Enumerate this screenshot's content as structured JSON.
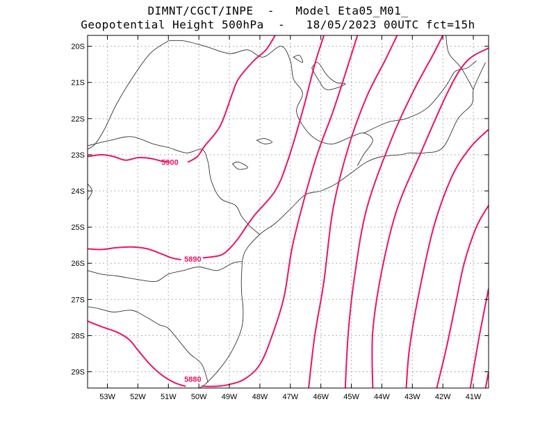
{
  "title": {
    "line1": "DIMNT/CGCT/INPE  -   Model Eta05_M01_",
    "line2": "Geopotential Height 500hPa  -   18/05/2023 00UTC fct=15h"
  },
  "map": {
    "lon_range": [
      -53.65,
      -40.5
    ],
    "lat_range": [
      -29.45,
      -19.7
    ],
    "lon_ticks": [
      {
        "value": -53,
        "label": "53W"
      },
      {
        "value": -52,
        "label": "52W"
      },
      {
        "value": -51,
        "label": "51W"
      },
      {
        "value": -50,
        "label": "50W"
      },
      {
        "value": -49,
        "label": "49W"
      },
      {
        "value": -48,
        "label": "48W"
      },
      {
        "value": -47,
        "label": "47W"
      },
      {
        "value": -46,
        "label": "46W"
      },
      {
        "value": -45,
        "label": "45W"
      },
      {
        "value": -44,
        "label": "44W"
      },
      {
        "value": -43,
        "label": "43W"
      },
      {
        "value": -42,
        "label": "42W"
      },
      {
        "value": -41,
        "label": "41W"
      }
    ],
    "lat_ticks": [
      {
        "value": -20,
        "label": "20S"
      },
      {
        "value": -21,
        "label": "21S"
      },
      {
        "value": -22,
        "label": "22S"
      },
      {
        "value": -23,
        "label": "23S"
      },
      {
        "value": -24,
        "label": "24S"
      },
      {
        "value": -25,
        "label": "25S"
      },
      {
        "value": -26,
        "label": "26S"
      },
      {
        "value": -27,
        "label": "27S"
      },
      {
        "value": -28,
        "label": "28S"
      },
      {
        "value": -29,
        "label": "29S"
      }
    ],
    "colors": {
      "contour": "#ee1166",
      "boundary": "#333333",
      "grid": "#999999",
      "frame": "#000000"
    },
    "contour_labels": [
      {
        "text": "5900",
        "lon": -50.95,
        "lat": -23.2
      },
      {
        "text": "5890",
        "lon": -50.2,
        "lat": -25.88
      },
      {
        "text": "5880",
        "lon": -50.2,
        "lat": -29.2
      }
    ],
    "contours": [
      {
        "name": "h5900",
        "points": [
          [
            -53.65,
            -23.05
          ],
          [
            -53.2,
            -23.0
          ],
          [
            -52.8,
            -23.05
          ],
          [
            -52.4,
            -23.15
          ],
          [
            -52.0,
            -23.08
          ],
          [
            -51.6,
            -23.1
          ],
          [
            -51.2,
            -23.18
          ],
          [
            -51.0,
            -23.2
          ]
        ]
      },
      {
        "name": "h5900",
        "points": [
          [
            -50.35,
            -23.2
          ],
          [
            -50.05,
            -23.05
          ],
          [
            -49.8,
            -22.75
          ],
          [
            -49.3,
            -22.2
          ],
          [
            -48.9,
            -21.3
          ],
          [
            -48.7,
            -20.9
          ],
          [
            -48.2,
            -20.4
          ],
          [
            -47.8,
            -20.1
          ],
          [
            -47.5,
            -19.7
          ]
        ]
      },
      {
        "name": "h5890",
        "points": [
          [
            -53.65,
            -25.6
          ],
          [
            -53.2,
            -25.62
          ],
          [
            -52.7,
            -25.57
          ],
          [
            -52.2,
            -25.55
          ],
          [
            -51.7,
            -25.6
          ],
          [
            -51.2,
            -25.75
          ],
          [
            -50.9,
            -25.85
          ],
          [
            -50.6,
            -25.9
          ]
        ]
      },
      {
        "name": "h5890",
        "points": [
          [
            -49.85,
            -25.85
          ],
          [
            -49.3,
            -25.78
          ],
          [
            -49.0,
            -25.6
          ],
          [
            -48.7,
            -25.3
          ],
          [
            -48.2,
            -24.7
          ],
          [
            -47.5,
            -24.0
          ],
          [
            -47.1,
            -23.2
          ],
          [
            -46.6,
            -21.8
          ],
          [
            -46.2,
            -20.5
          ],
          [
            -45.9,
            -19.7
          ]
        ]
      },
      {
        "name": "h5880",
        "points": [
          [
            -53.65,
            -27.6
          ],
          [
            -53.2,
            -27.75
          ],
          [
            -52.7,
            -27.9
          ],
          [
            -52.3,
            -28.1
          ],
          [
            -52.0,
            -28.4
          ],
          [
            -51.6,
            -28.8
          ],
          [
            -51.2,
            -29.1
          ],
          [
            -50.8,
            -29.3
          ],
          [
            -50.45,
            -29.4
          ]
        ]
      },
      {
        "name": "h5880",
        "points": [
          [
            -49.9,
            -29.4
          ],
          [
            -49.4,
            -29.4
          ],
          [
            -49.0,
            -29.35
          ],
          [
            -48.5,
            -29.2
          ],
          [
            -48.0,
            -28.8
          ],
          [
            -47.6,
            -28.0
          ],
          [
            -47.2,
            -26.9
          ],
          [
            -46.9,
            -25.4
          ],
          [
            -46.2,
            -23.2
          ],
          [
            -45.6,
            -21.8
          ],
          [
            -45.1,
            -20.5
          ],
          [
            -44.8,
            -19.7
          ]
        ]
      },
      {
        "name": "h5870",
        "points": [
          [
            -46.4,
            -29.45
          ],
          [
            -46.2,
            -28.0
          ],
          [
            -45.9,
            -26.5
          ],
          [
            -45.6,
            -24.5
          ],
          [
            -45.1,
            -22.8
          ],
          [
            -44.5,
            -21.4
          ],
          [
            -43.9,
            -20.4
          ],
          [
            -43.5,
            -19.7
          ]
        ]
      },
      {
        "name": "h5860",
        "points": [
          [
            -45.2,
            -29.45
          ],
          [
            -45.1,
            -27.9
          ],
          [
            -44.9,
            -26.4
          ],
          [
            -44.5,
            -24.5
          ],
          [
            -43.7,
            -22.6
          ],
          [
            -43.0,
            -21.3
          ],
          [
            -42.3,
            -20.2
          ],
          [
            -42.0,
            -19.7
          ]
        ]
      },
      {
        "name": "h5850",
        "points": [
          [
            -44.3,
            -29.45
          ],
          [
            -44.3,
            -27.9
          ],
          [
            -44.0,
            -26.2
          ],
          [
            -43.5,
            -24.5
          ],
          [
            -42.7,
            -22.9
          ],
          [
            -41.8,
            -21.2
          ],
          [
            -41.2,
            -20.4
          ],
          [
            -40.5,
            -20.05
          ]
        ]
      },
      {
        "name": "h5840",
        "points": [
          [
            -43.2,
            -29.45
          ],
          [
            -43.1,
            -28.4
          ],
          [
            -42.8,
            -26.9
          ],
          [
            -42.3,
            -25.0
          ],
          [
            -41.7,
            -23.6
          ],
          [
            -41.1,
            -22.8
          ],
          [
            -40.5,
            -22.3
          ]
        ]
      },
      {
        "name": "h5830",
        "points": [
          [
            -42.2,
            -29.45
          ],
          [
            -41.9,
            -28.4
          ],
          [
            -41.6,
            -27.2
          ],
          [
            -41.3,
            -26.0
          ],
          [
            -40.9,
            -25.0
          ],
          [
            -40.5,
            -24.4
          ]
        ]
      },
      {
        "name": "h5820",
        "points": [
          [
            -41.1,
            -29.45
          ],
          [
            -40.8,
            -28.0
          ],
          [
            -40.5,
            -26.7
          ]
        ]
      },
      {
        "name": "h5810",
        "points": [
          [
            -40.6,
            -29.45
          ],
          [
            -40.5,
            -29.0
          ]
        ]
      }
    ],
    "boundaries": [
      {
        "name": "coastline",
        "points": [
          [
            -40.6,
            -20.45
          ],
          [
            -40.8,
            -20.8
          ],
          [
            -41.0,
            -21.2
          ],
          [
            -41.05,
            -21.6
          ],
          [
            -41.5,
            -22.0
          ],
          [
            -42.0,
            -22.8
          ],
          [
            -42.6,
            -22.95
          ],
          [
            -43.1,
            -22.95
          ],
          [
            -43.4,
            -23.0
          ],
          [
            -44.0,
            -23.05
          ],
          [
            -44.5,
            -23.2
          ],
          [
            -45.0,
            -23.5
          ],
          [
            -45.5,
            -23.8
          ],
          [
            -46.0,
            -24.0
          ],
          [
            -46.5,
            -24.1
          ],
          [
            -47.0,
            -24.5
          ],
          [
            -47.5,
            -24.9
          ],
          [
            -48.0,
            -25.2
          ],
          [
            -48.5,
            -25.7
          ],
          [
            -48.6,
            -26.3
          ],
          [
            -48.6,
            -26.8
          ],
          [
            -48.55,
            -27.3
          ],
          [
            -48.6,
            -27.8
          ],
          [
            -48.9,
            -28.4
          ],
          [
            -49.3,
            -28.9
          ],
          [
            -49.8,
            -29.35
          ],
          [
            -50.0,
            -29.45
          ]
        ]
      },
      {
        "name": "state-border-ms-sp",
        "points": [
          [
            -51.0,
            -19.85
          ],
          [
            -51.6,
            -20.2
          ],
          [
            -52.2,
            -20.9
          ],
          [
            -52.7,
            -21.6
          ],
          [
            -53.1,
            -22.3
          ],
          [
            -53.4,
            -22.7
          ],
          [
            -53.65,
            -22.85
          ]
        ]
      },
      {
        "name": "state-border-sp-pr",
        "points": [
          [
            -53.65,
            -22.75
          ],
          [
            -52.9,
            -22.6
          ],
          [
            -52.2,
            -22.5
          ],
          [
            -51.5,
            -22.7
          ],
          [
            -51.0,
            -22.8
          ],
          [
            -50.4,
            -22.95
          ],
          [
            -49.9,
            -22.85
          ],
          [
            -49.7,
            -23.2
          ],
          [
            -49.6,
            -23.7
          ],
          [
            -49.3,
            -24.2
          ],
          [
            -48.8,
            -24.4
          ],
          [
            -48.6,
            -24.7
          ],
          [
            -48.3,
            -25.0
          ],
          [
            -48.0,
            -25.2
          ]
        ]
      },
      {
        "name": "state-border-sp-mg",
        "points": [
          [
            -51.0,
            -19.85
          ],
          [
            -50.5,
            -19.85
          ],
          [
            -49.8,
            -20.0
          ],
          [
            -49.0,
            -20.2
          ],
          [
            -48.4,
            -20.1
          ],
          [
            -47.9,
            -20.3
          ],
          [
            -47.3,
            -20.0
          ],
          [
            -47.0,
            -20.4
          ],
          [
            -46.9,
            -20.9
          ],
          [
            -46.6,
            -21.3
          ],
          [
            -46.8,
            -21.8
          ],
          [
            -46.5,
            -22.3
          ],
          [
            -46.1,
            -22.6
          ],
          [
            -45.6,
            -22.7
          ],
          [
            -45.0,
            -22.5
          ],
          [
            -44.6,
            -22.4
          ],
          [
            -44.3,
            -22.6
          ],
          [
            -44.6,
            -23.0
          ],
          [
            -44.8,
            -23.3
          ]
        ]
      },
      {
        "name": "state-border-mg-rj",
        "points": [
          [
            -44.6,
            -22.4
          ],
          [
            -43.8,
            -22.1
          ],
          [
            -43.2,
            -22.0
          ],
          [
            -42.5,
            -21.7
          ],
          [
            -41.9,
            -21.1
          ],
          [
            -41.6,
            -20.7
          ],
          [
            -41.2,
            -20.6
          ],
          [
            -40.9,
            -20.4
          ]
        ]
      },
      {
        "name": "state-border-mg-es",
        "points": [
          [
            -41.9,
            -19.7
          ],
          [
            -41.8,
            -20.2
          ],
          [
            -41.4,
            -20.6
          ],
          [
            -41.0,
            -21.2
          ]
        ]
      },
      {
        "name": "state-border-pr-sc",
        "points": [
          [
            -53.65,
            -26.2
          ],
          [
            -53.2,
            -26.3
          ],
          [
            -52.7,
            -26.35
          ],
          [
            -52.0,
            -26.45
          ],
          [
            -51.4,
            -26.5
          ],
          [
            -51.0,
            -26.3
          ],
          [
            -50.5,
            -26.2
          ],
          [
            -50.0,
            -26.1
          ],
          [
            -49.4,
            -26.2
          ],
          [
            -48.9,
            -26.0
          ],
          [
            -48.6,
            -25.95
          ]
        ]
      },
      {
        "name": "state-border-sc-rs",
        "points": [
          [
            -53.65,
            -27.2
          ],
          [
            -53.3,
            -27.25
          ],
          [
            -52.8,
            -27.35
          ],
          [
            -52.2,
            -27.3
          ],
          [
            -51.7,
            -27.5
          ],
          [
            -51.3,
            -27.7
          ],
          [
            -51.0,
            -27.8
          ],
          [
            -50.6,
            -28.2
          ],
          [
            -50.3,
            -28.5
          ],
          [
            -49.9,
            -28.8
          ],
          [
            -49.7,
            -29.3
          ]
        ]
      },
      {
        "name": "state-border-parana-river",
        "points": [
          [
            -53.65,
            -23.8
          ],
          [
            -53.5,
            -24.0
          ],
          [
            -53.65,
            -24.25
          ]
        ]
      }
    ],
    "lakes": [
      {
        "name": "reservoir",
        "points": [
          [
            -48.1,
            -22.6
          ],
          [
            -47.85,
            -22.55
          ],
          [
            -47.6,
            -22.65
          ],
          [
            -47.85,
            -22.7
          ],
          [
            -48.1,
            -22.6
          ]
        ]
      },
      {
        "name": "reservoir",
        "points": [
          [
            -48.9,
            -23.25
          ],
          [
            -48.7,
            -23.2
          ],
          [
            -48.4,
            -23.35
          ],
          [
            -48.7,
            -23.4
          ],
          [
            -48.9,
            -23.25
          ]
        ]
      },
      {
        "name": "reservoir",
        "points": [
          [
            -46.3,
            -20.6
          ],
          [
            -46.1,
            -20.45
          ],
          [
            -45.8,
            -20.8
          ],
          [
            -45.5,
            -21.0
          ],
          [
            -45.2,
            -21.05
          ],
          [
            -45.8,
            -21.2
          ],
          [
            -46.1,
            -20.9
          ],
          [
            -46.3,
            -20.6
          ]
        ]
      },
      {
        "name": "reservoir",
        "points": [
          [
            -46.9,
            -20.3
          ],
          [
            -46.7,
            -20.25
          ],
          [
            -46.6,
            -20.45
          ],
          [
            -46.9,
            -20.3
          ]
        ]
      }
    ]
  }
}
